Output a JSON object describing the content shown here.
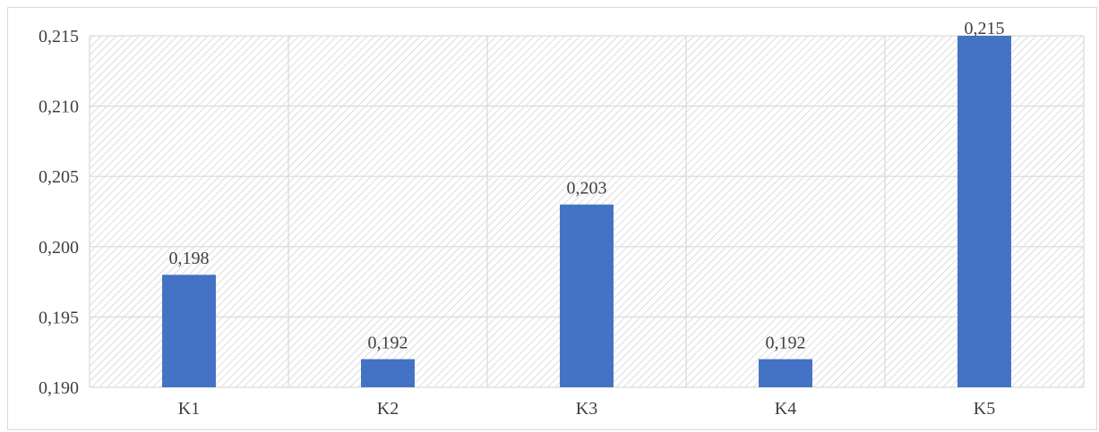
{
  "chart_data": {
    "type": "bar",
    "title": "",
    "xlabel": "",
    "ylabel": "",
    "categories": [
      "K1",
      "K2",
      "K3",
      "K4",
      "K5"
    ],
    "values": [
      0.198,
      0.192,
      0.203,
      0.192,
      0.215
    ],
    "value_labels": [
      "0,198",
      "0,192",
      "0,203",
      "0,192",
      "0,215"
    ],
    "ylim": [
      0.19,
      0.215
    ],
    "yticks": [
      0.19,
      0.195,
      0.2,
      0.205,
      0.21,
      0.215
    ],
    "ytick_labels": [
      "0,190",
      "0,195",
      "0,200",
      "0,205",
      "0,210",
      "0,215"
    ],
    "grid": true,
    "legend": "none",
    "bar_color": "#4472c4",
    "plot_background": "hatched-diagonal-gray"
  }
}
